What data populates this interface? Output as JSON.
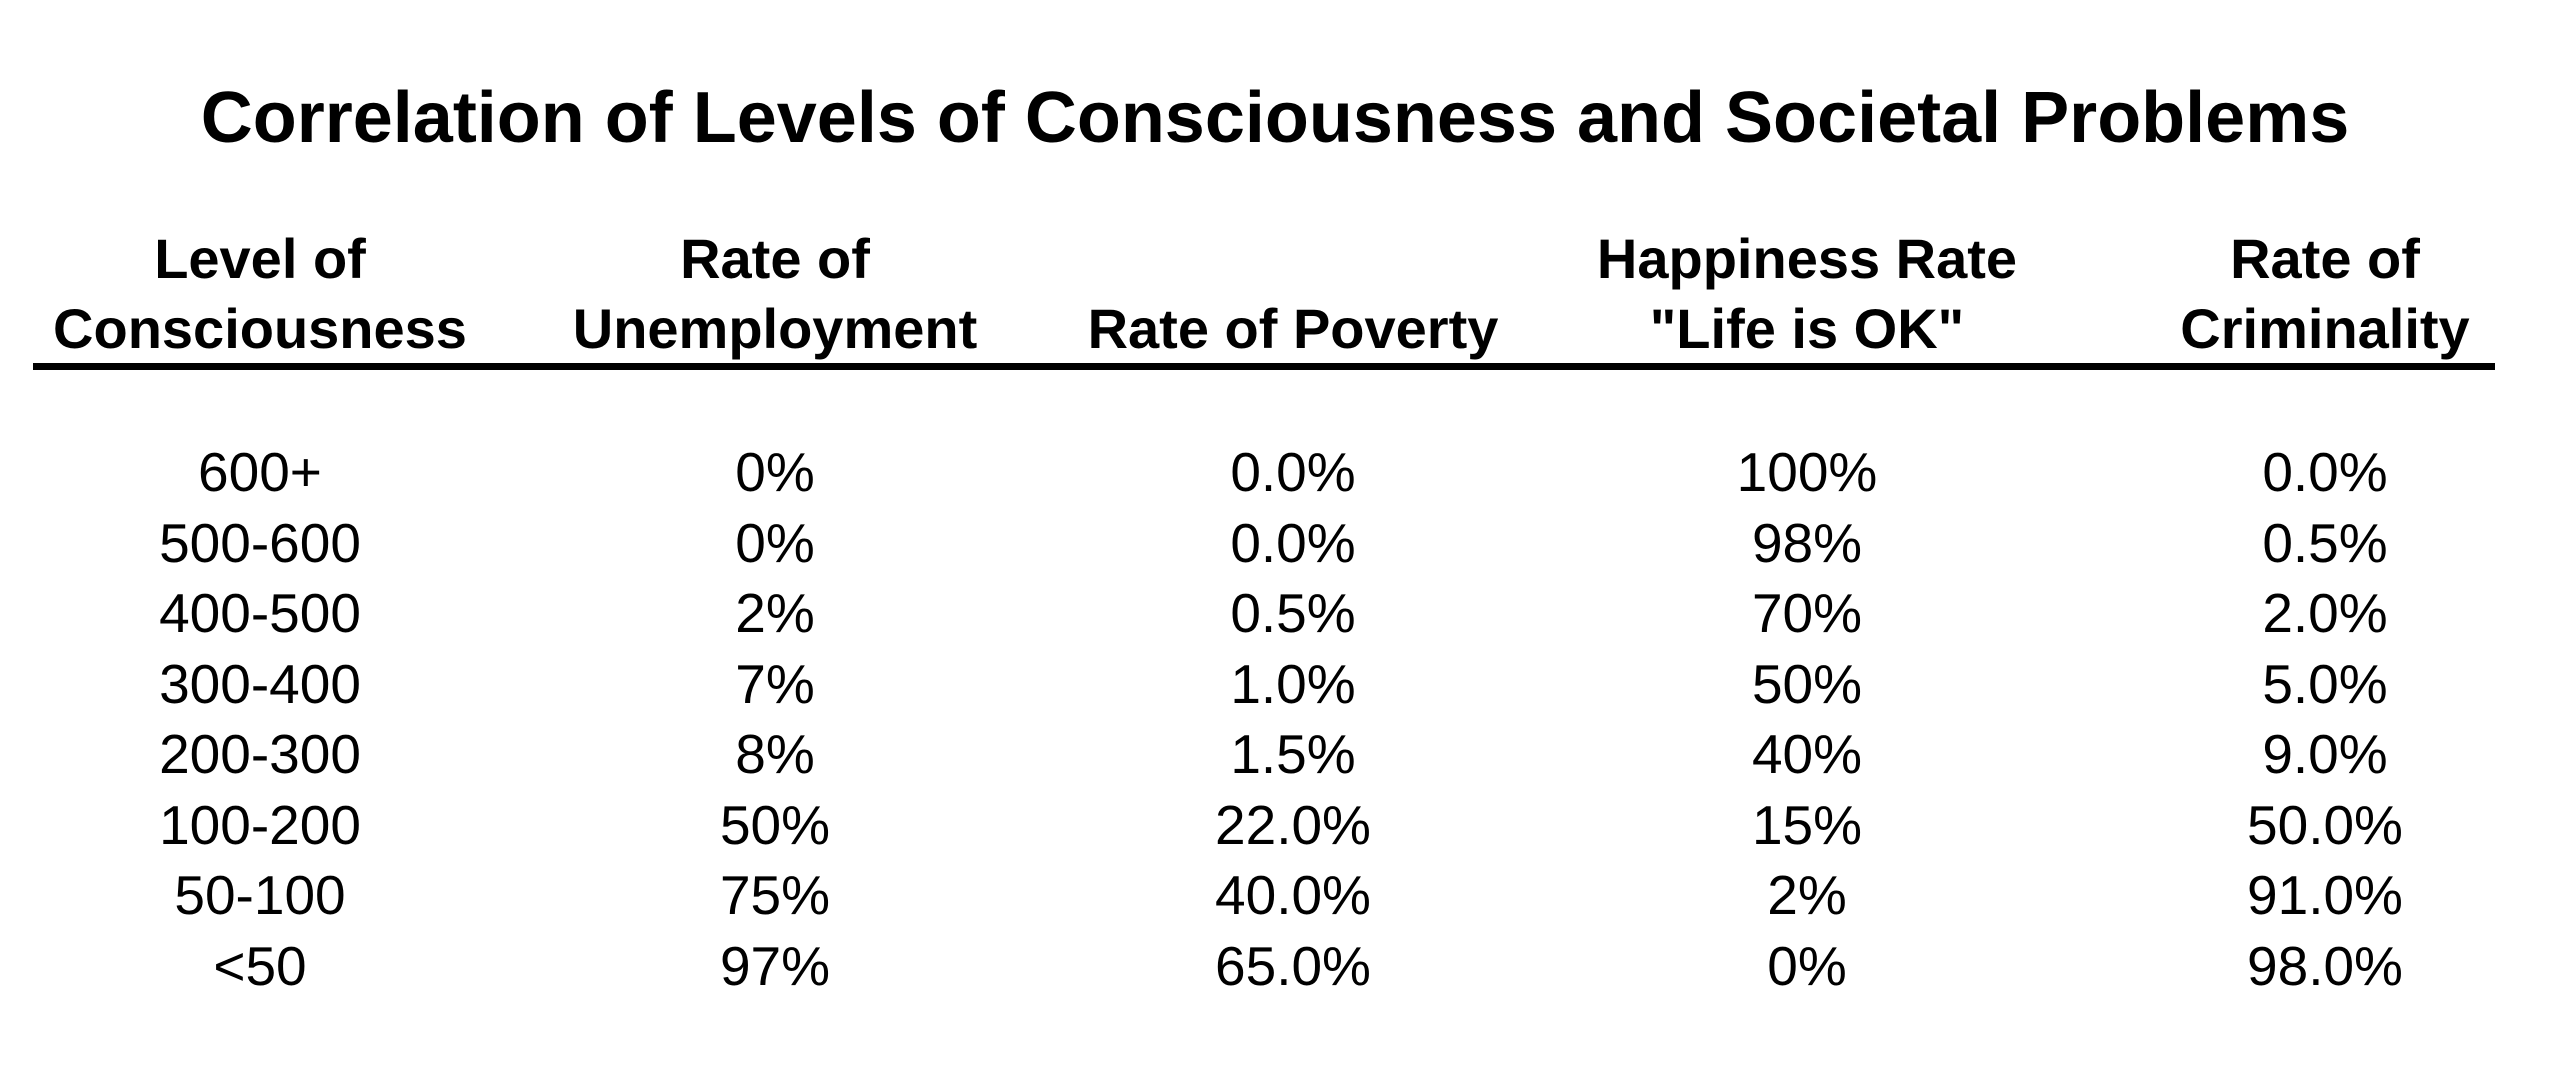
{
  "chart_data": {
    "type": "table",
    "title": "Correlation of Levels of Consciousness and Societal Problems",
    "columns": [
      {
        "key": "level",
        "label_lines": [
          "Level of",
          "Consciousness"
        ]
      },
      {
        "key": "unemployment",
        "label_lines": [
          "Rate of",
          "Unemployment"
        ]
      },
      {
        "key": "poverty",
        "label_lines": [
          "",
          "Rate of Poverty"
        ]
      },
      {
        "key": "happiness",
        "label_lines": [
          "Happiness Rate",
          "\"Life is OK\""
        ]
      },
      {
        "key": "criminality",
        "label_lines": [
          "Rate of",
          "Criminality"
        ]
      }
    ],
    "rows": [
      [
        "600+",
        "0%",
        "0.0%",
        "100%",
        "0.0%"
      ],
      [
        "500-600",
        "0%",
        "0.0%",
        "98%",
        "0.5%"
      ],
      [
        "400-500",
        "2%",
        "0.5%",
        "70%",
        "2.0%"
      ],
      [
        "300-400",
        "7%",
        "1.0%",
        "50%",
        "5.0%"
      ],
      [
        "200-300",
        "8%",
        "1.5%",
        "40%",
        "9.0%"
      ],
      [
        "100-200",
        "50%",
        "22.0%",
        "15%",
        "50.0%"
      ],
      [
        "50-100",
        "75%",
        "40.0%",
        "2%",
        "91.0%"
      ],
      [
        "<50",
        "97%",
        "65.0%",
        "0%",
        "98.0%"
      ]
    ]
  }
}
